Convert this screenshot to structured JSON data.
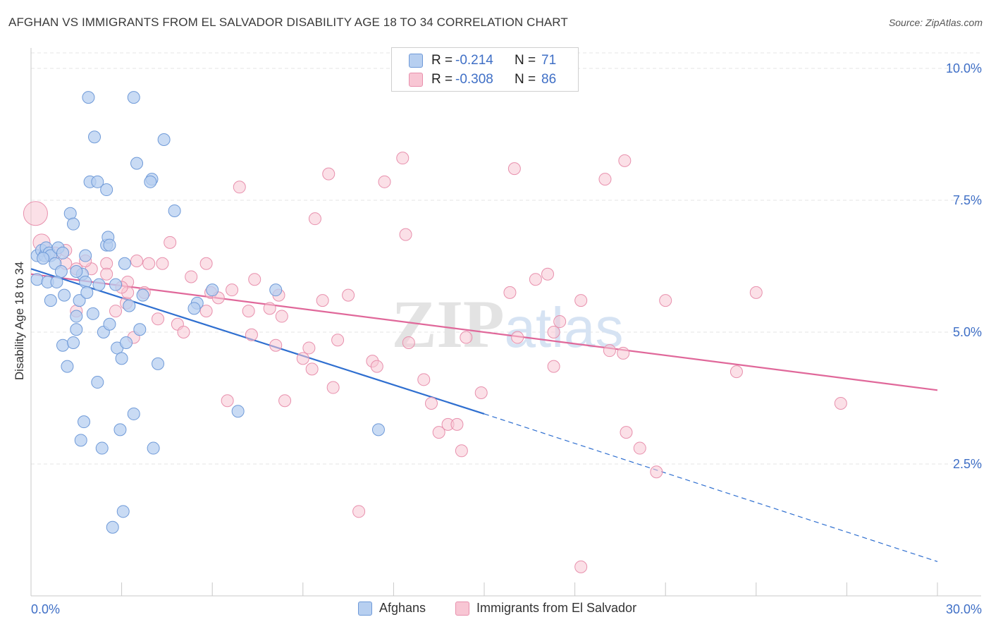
{
  "title": "AFGHAN VS IMMIGRANTS FROM EL SALVADOR DISABILITY AGE 18 TO 34 CORRELATION CHART",
  "source": "Source: ZipAtlas.com",
  "watermark": "ZIPatlas",
  "legend": {
    "rows": [
      {
        "r_label": "R =",
        "r_value": "-0.214",
        "n_label": "N =",
        "n_value": "71"
      },
      {
        "r_label": "R =",
        "r_value": "-0.308",
        "n_label": "N =",
        "n_value": "86"
      }
    ]
  },
  "bottom_legend": {
    "afghans": "Afghans",
    "el_salvador": "Immigrants from El Salvador"
  },
  "chart_data": {
    "type": "scatter",
    "ylabel": "Disability Age 18 to 34",
    "xlim": [
      0,
      30
    ],
    "ylim": [
      0,
      10.5
    ],
    "x_tick_labels": [
      "0.0%",
      "30.0%"
    ],
    "y_ticks": [
      2.5,
      5.0,
      7.5,
      10.0
    ],
    "y_tick_labels": [
      "2.5%",
      "5.0%",
      "7.5%",
      "10.0%"
    ],
    "grid": "horizontal dashed",
    "colors": {
      "afghans_fill": "#b7cff0",
      "afghans_stroke": "#6f9ad8",
      "afghans_line": "#2f6fd0",
      "elsal_fill": "#f8c6d4",
      "elsal_stroke": "#e890ad",
      "elsal_line": "#e0689a",
      "tick_label": "#3f6fc6"
    },
    "series": [
      {
        "name": "Afghans",
        "trend": {
          "x0": 0.0,
          "y0": 6.2,
          "x1": 15.0,
          "y1": 3.45,
          "dash_to_x": 30.0,
          "dash_to_y": 0.65
        },
        "points": [
          [
            0.2,
            6.45
          ],
          [
            0.35,
            6.55
          ],
          [
            0.45,
            6.45
          ],
          [
            0.5,
            6.6
          ],
          [
            0.6,
            6.5
          ],
          [
            0.65,
            6.45
          ],
          [
            0.9,
            6.6
          ],
          [
            1.05,
            6.5
          ],
          [
            0.8,
            6.3
          ],
          [
            1.0,
            6.15
          ],
          [
            0.2,
            6.0
          ],
          [
            0.55,
            5.95
          ],
          [
            0.85,
            5.95
          ],
          [
            1.1,
            5.7
          ],
          [
            1.7,
            6.1
          ],
          [
            1.8,
            5.95
          ],
          [
            1.3,
            7.25
          ],
          [
            1.4,
            7.05
          ],
          [
            1.8,
            6.45
          ],
          [
            2.5,
            6.65
          ],
          [
            2.55,
            6.8
          ],
          [
            2.6,
            6.65
          ],
          [
            3.1,
            6.3
          ],
          [
            2.8,
            5.9
          ],
          [
            1.9,
            9.45
          ],
          [
            3.4,
            9.45
          ],
          [
            2.1,
            8.7
          ],
          [
            4.4,
            8.65
          ],
          [
            3.5,
            8.2
          ],
          [
            4.0,
            7.9
          ],
          [
            3.95,
            7.85
          ],
          [
            1.95,
            7.85
          ],
          [
            2.2,
            7.85
          ],
          [
            2.5,
            7.7
          ],
          [
            4.75,
            7.3
          ],
          [
            0.65,
            5.6
          ],
          [
            1.6,
            5.6
          ],
          [
            1.5,
            5.3
          ],
          [
            2.05,
            5.35
          ],
          [
            3.25,
            5.5
          ],
          [
            3.7,
            5.7
          ],
          [
            1.5,
            5.05
          ],
          [
            2.4,
            5.0
          ],
          [
            2.6,
            5.15
          ],
          [
            3.6,
            5.05
          ],
          [
            1.05,
            4.75
          ],
          [
            1.4,
            4.8
          ],
          [
            2.85,
            4.7
          ],
          [
            3.15,
            4.8
          ],
          [
            3.0,
            4.5
          ],
          [
            1.2,
            4.35
          ],
          [
            4.2,
            4.4
          ],
          [
            2.2,
            4.05
          ],
          [
            5.5,
            5.55
          ],
          [
            5.4,
            5.45
          ],
          [
            8.1,
            5.8
          ],
          [
            3.4,
            3.45
          ],
          [
            1.75,
            3.3
          ],
          [
            2.95,
            3.15
          ],
          [
            6.85,
            3.5
          ],
          [
            11.5,
            3.15
          ],
          [
            1.65,
            2.95
          ],
          [
            2.35,
            2.8
          ],
          [
            4.05,
            2.8
          ],
          [
            3.05,
            1.6
          ],
          [
            2.7,
            1.3
          ],
          [
            1.5,
            6.15
          ],
          [
            0.4,
            6.4
          ],
          [
            2.25,
            5.9
          ],
          [
            6.0,
            5.8
          ],
          [
            1.85,
            5.75
          ]
        ]
      },
      {
        "name": "Immigrants from El Salvador",
        "trend": {
          "x0": 0.0,
          "y0": 6.1,
          "x1": 30.0,
          "y1": 3.9
        },
        "points": [
          [
            0.15,
            7.25
          ],
          [
            0.35,
            6.7
          ],
          [
            1.15,
            6.55
          ],
          [
            2.0,
            6.2
          ],
          [
            1.8,
            6.35
          ],
          [
            2.5,
            6.3
          ],
          [
            3.5,
            6.35
          ],
          [
            3.9,
            6.3
          ],
          [
            4.35,
            6.3
          ],
          [
            5.8,
            6.3
          ],
          [
            1.5,
            6.2
          ],
          [
            2.5,
            6.1
          ],
          [
            3.2,
            5.95
          ],
          [
            3.15,
            5.55
          ],
          [
            3.2,
            5.75
          ],
          [
            3.75,
            5.75
          ],
          [
            4.6,
            6.7
          ],
          [
            5.3,
            6.05
          ],
          [
            5.8,
            5.4
          ],
          [
            5.95,
            5.75
          ],
          [
            6.2,
            5.65
          ],
          [
            6.65,
            5.8
          ],
          [
            7.4,
            6.0
          ],
          [
            8.2,
            5.7
          ],
          [
            7.2,
            5.4
          ],
          [
            7.9,
            5.45
          ],
          [
            8.3,
            5.3
          ],
          [
            9.65,
            5.6
          ],
          [
            10.5,
            5.7
          ],
          [
            12.4,
            6.85
          ],
          [
            12.3,
            8.3
          ],
          [
            11.7,
            7.85
          ],
          [
            9.85,
            8.0
          ],
          [
            9.4,
            7.15
          ],
          [
            6.9,
            7.75
          ],
          [
            16.0,
            8.1
          ],
          [
            19.0,
            7.9
          ],
          [
            19.65,
            8.25
          ],
          [
            15.85,
            5.75
          ],
          [
            16.7,
            6.0
          ],
          [
            17.1,
            6.1
          ],
          [
            17.3,
            5.0
          ],
          [
            17.5,
            5.2
          ],
          [
            18.2,
            5.6
          ],
          [
            17.3,
            4.35
          ],
          [
            21.0,
            5.6
          ],
          [
            24.0,
            5.75
          ],
          [
            4.2,
            5.25
          ],
          [
            4.85,
            5.15
          ],
          [
            5.05,
            5.0
          ],
          [
            3.4,
            4.9
          ],
          [
            7.3,
            4.95
          ],
          [
            8.1,
            4.75
          ],
          [
            9.0,
            4.5
          ],
          [
            9.2,
            4.7
          ],
          [
            10.15,
            4.85
          ],
          [
            11.3,
            4.45
          ],
          [
            11.45,
            4.35
          ],
          [
            12.5,
            4.8
          ],
          [
            14.4,
            4.9
          ],
          [
            16.1,
            4.9
          ],
          [
            19.15,
            4.65
          ],
          [
            19.6,
            4.6
          ],
          [
            23.35,
            4.25
          ],
          [
            13.0,
            4.1
          ],
          [
            14.9,
            3.85
          ],
          [
            10.0,
            3.95
          ],
          [
            6.5,
            3.7
          ],
          [
            8.4,
            3.7
          ],
          [
            9.3,
            4.3
          ],
          [
            13.25,
            3.65
          ],
          [
            13.5,
            3.1
          ],
          [
            13.8,
            3.25
          ],
          [
            14.1,
            3.25
          ],
          [
            14.25,
            2.75
          ],
          [
            19.7,
            3.1
          ],
          [
            20.15,
            2.8
          ],
          [
            20.7,
            2.35
          ],
          [
            26.8,
            3.65
          ],
          [
            10.85,
            1.6
          ],
          [
            18.2,
            0.55
          ],
          [
            1.15,
            6.3
          ],
          [
            1.5,
            5.4
          ],
          [
            2.8,
            5.4
          ],
          [
            0.8,
            6.5
          ],
          [
            3.0,
            5.85
          ]
        ]
      }
    ]
  }
}
